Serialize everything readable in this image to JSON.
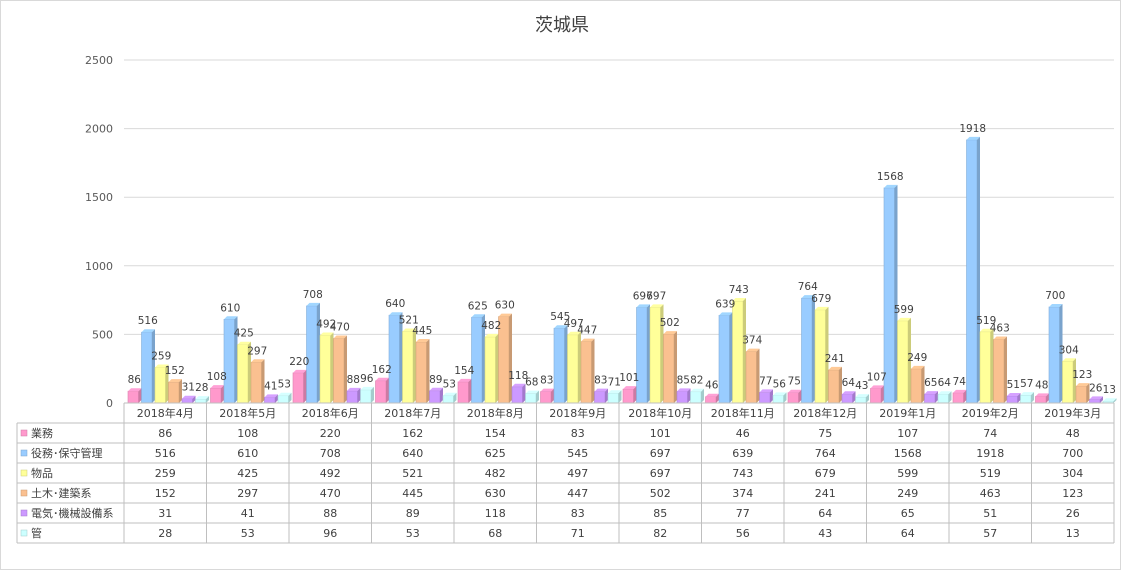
{
  "chart_data": {
    "type": "bar",
    "title": "茨城県",
    "xlabel": "",
    "ylabel": "",
    "ylim": [
      0,
      2500
    ],
    "yticks": [
      0,
      500,
      1000,
      1500,
      2000,
      2500
    ],
    "grid": true,
    "legend": "data-table-left",
    "categories": [
      "2018年4月",
      "2018年5月",
      "2018年6月",
      "2018年7月",
      "2018年8月",
      "2018年9月",
      "2018年10月",
      "2018年11月",
      "2018年12月",
      "2019年1月",
      "2019年2月",
      "2019年3月"
    ],
    "series": [
      {
        "name": "業務",
        "color": "#ff99cc",
        "values": [
          86,
          108,
          220,
          162,
          154,
          83,
          101,
          46,
          75,
          107,
          74,
          48
        ]
      },
      {
        "name": "役務･保守管理",
        "color": "#99ccff",
        "values": [
          516,
          610,
          708,
          640,
          625,
          545,
          697,
          639,
          764,
          1568,
          1918,
          700
        ]
      },
      {
        "name": "物品",
        "color": "#ffff99",
        "values": [
          259,
          425,
          492,
          521,
          482,
          497,
          697,
          743,
          679,
          599,
          519,
          304
        ]
      },
      {
        "name": "土木･建築系",
        "color": "#fac090",
        "values": [
          152,
          297,
          470,
          445,
          630,
          447,
          502,
          374,
          241,
          249,
          463,
          123
        ]
      },
      {
        "name": "電気･機械設備系",
        "color": "#cc99ff",
        "values": [
          31,
          41,
          88,
          89,
          118,
          83,
          85,
          77,
          64,
          65,
          51,
          26
        ]
      },
      {
        "name": "管",
        "color": "#ccffff",
        "values": [
          28,
          53,
          96,
          53,
          68,
          71,
          82,
          56,
          43,
          64,
          57,
          13
        ]
      }
    ]
  }
}
